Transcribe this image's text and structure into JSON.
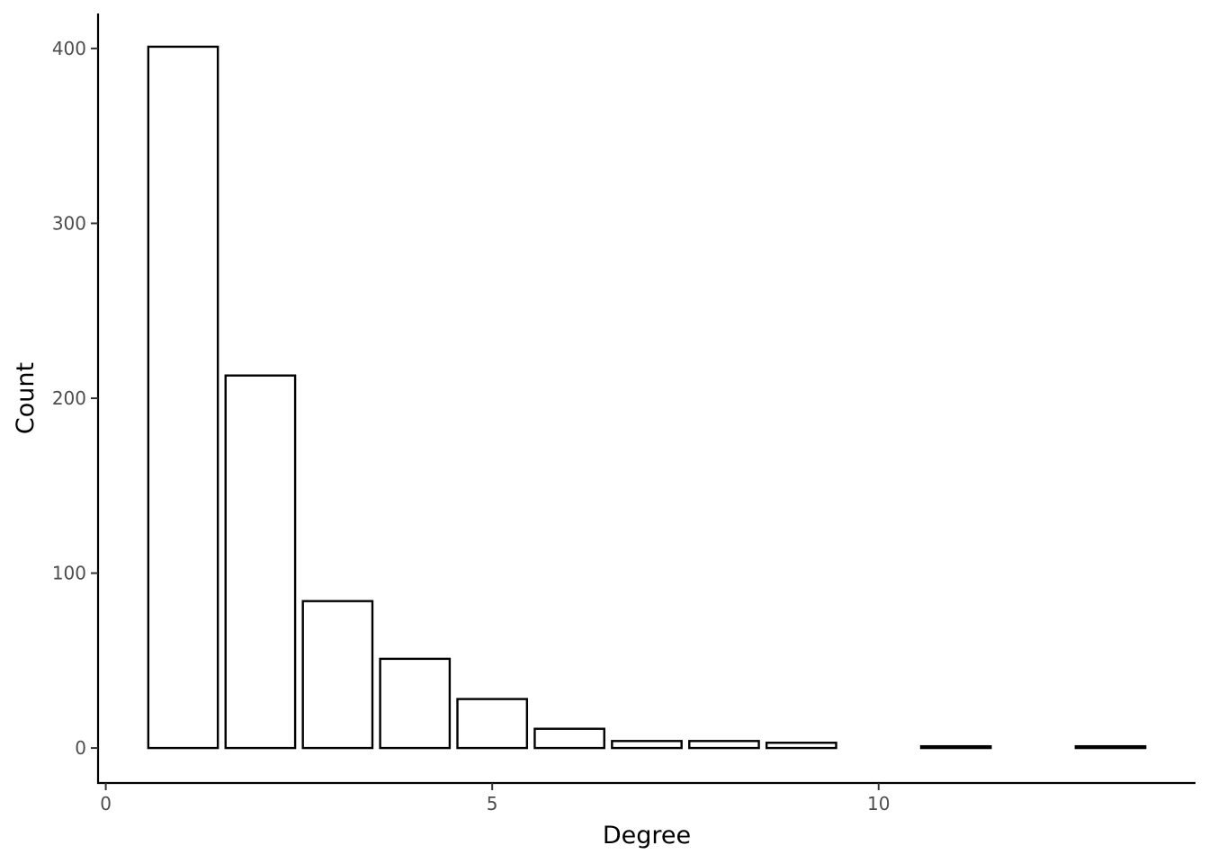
{
  "chart_data": {
    "type": "bar",
    "title": "",
    "xlabel": "Degree",
    "ylabel": "Count",
    "x": [
      1,
      2,
      3,
      4,
      5,
      6,
      7,
      8,
      9,
      11,
      13
    ],
    "values": [
      401,
      213,
      84,
      51,
      28,
      11,
      4,
      4,
      3,
      1,
      1
    ],
    "xlim": [
      -0.1,
      14.1
    ],
    "ylim": [
      -20,
      420
    ],
    "xticks": [
      0,
      5,
      10
    ],
    "yticks": [
      0,
      100,
      200,
      300,
      400
    ],
    "xtick_labels": [
      "0",
      "5",
      "10"
    ],
    "ytick_labels": [
      "0",
      "100",
      "200",
      "300",
      "400"
    ],
    "bar_width": 0.9,
    "bar_fill": "#ffffff",
    "bar_stroke": "#000000",
    "grid": false,
    "legend": "none"
  }
}
